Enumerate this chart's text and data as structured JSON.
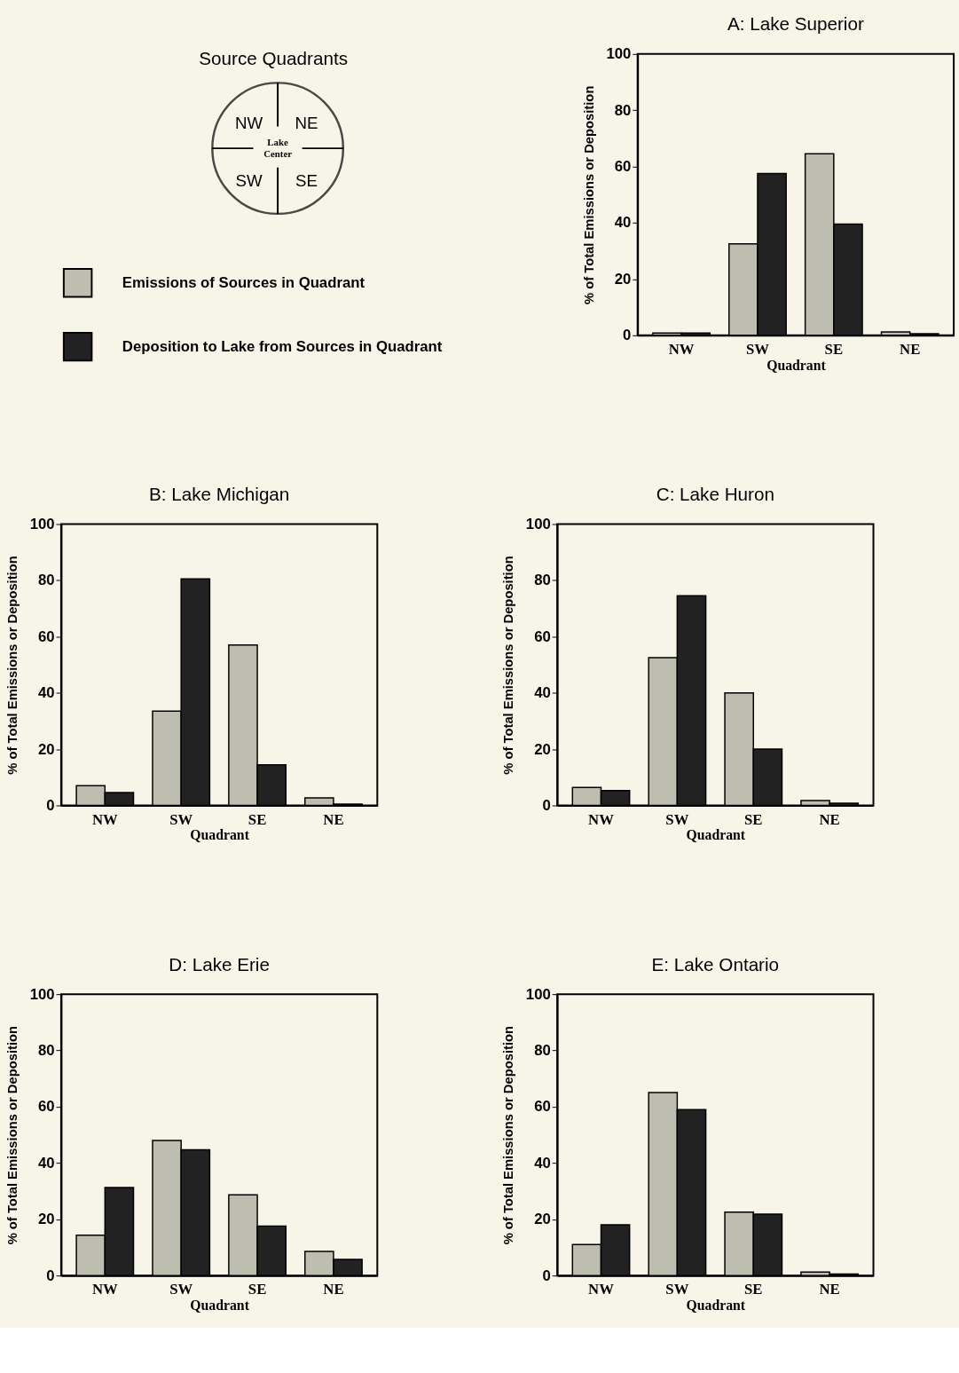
{
  "chart_data": [
    {
      "type": "other",
      "title": "Source Quadrants",
      "annotations": [
        "NW",
        "NE",
        "SW",
        "SE",
        "Lake\nCenter"
      ]
    },
    {
      "type": "bar",
      "title": "A:  Lake Superior",
      "categories": [
        "NW",
        "SW",
        "SE",
        "NE"
      ],
      "xlabel": "Quadrant",
      "ylabel": "% of Total Emissions or Deposition",
      "ylim": [
        0,
        100
      ],
      "yticks": [
        0,
        20,
        40,
        60,
        80,
        100
      ],
      "legend": "left",
      "series": [
        {
          "name": "Emissions of Sources in Quadrant",
          "color": "#bdbdb0",
          "values": [
            0.8,
            32.5,
            64.5,
            1.2
          ]
        },
        {
          "name": "Deposition to Lake from Sources in Quadrant",
          "color": "#222222",
          "values": [
            0.8,
            57.5,
            39.5,
            0.6
          ]
        }
      ]
    },
    {
      "type": "bar",
      "title": "B:  Lake Michigan",
      "categories": [
        "NW",
        "SW",
        "SE",
        "NE"
      ],
      "xlabel": "Quadrant",
      "ylabel": "% of Total Emissions or Deposition",
      "ylim": [
        0,
        100
      ],
      "yticks": [
        0,
        20,
        40,
        60,
        80,
        100
      ],
      "series": [
        {
          "color": "#bdbdb0",
          "values": [
            7,
            33.5,
            57,
            2.7
          ]
        },
        {
          "color": "#222222",
          "values": [
            4.6,
            80.5,
            14.4,
            0.5
          ]
        }
      ]
    },
    {
      "type": "bar",
      "title": "C:  Lake Huron",
      "categories": [
        "NW",
        "SW",
        "SE",
        "NE"
      ],
      "xlabel": "Quadrant",
      "ylabel": "% of Total Emissions or Deposition",
      "ylim": [
        0,
        100
      ],
      "yticks": [
        0,
        20,
        40,
        60,
        80,
        100
      ],
      "series": [
        {
          "color": "#bdbdb0",
          "values": [
            6.4,
            52.5,
            40,
            1.7
          ]
        },
        {
          "color": "#222222",
          "values": [
            5.3,
            74.5,
            20,
            0.8
          ]
        }
      ]
    },
    {
      "type": "bar",
      "title": "D:  Lake Erie",
      "categories": [
        "NW",
        "SW",
        "SE",
        "NE"
      ],
      "xlabel": "Quadrant",
      "ylabel": "% of Total Emissions or Deposition",
      "ylim": [
        0,
        100
      ],
      "yticks": [
        0,
        20,
        40,
        60,
        80,
        100
      ],
      "series": [
        {
          "color": "#bdbdb0",
          "values": [
            14.3,
            48,
            28.7,
            8.6
          ]
        },
        {
          "color": "#222222",
          "values": [
            31.3,
            44.7,
            17.6,
            5.7
          ]
        }
      ]
    },
    {
      "type": "bar",
      "title": "E:  Lake Ontario",
      "categories": [
        "NW",
        "SW",
        "SE",
        "NE"
      ],
      "xlabel": "Quadrant",
      "ylabel": "% of Total Emissions or Deposition",
      "ylim": [
        0,
        100
      ],
      "yticks": [
        0,
        20,
        40,
        60,
        80,
        100
      ],
      "series": [
        {
          "color": "#bdbdb0",
          "values": [
            11,
            65,
            22.5,
            1.2
          ]
        },
        {
          "color": "#222222",
          "values": [
            18,
            59,
            21.8,
            0.5
          ]
        }
      ]
    }
  ]
}
